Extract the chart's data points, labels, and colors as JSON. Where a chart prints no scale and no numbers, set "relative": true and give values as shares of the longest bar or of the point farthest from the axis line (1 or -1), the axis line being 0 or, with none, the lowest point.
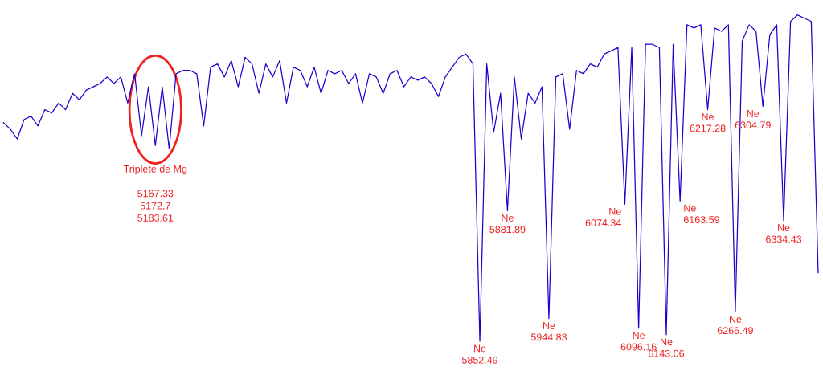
{
  "chart_data": {
    "type": "line",
    "relative": true,
    "categories": [
      null,
      null,
      null,
      null,
      null,
      null,
      null,
      null,
      null,
      null,
      null,
      null,
      null,
      null,
      null,
      null,
      null,
      null,
      null,
      null,
      null,
      null,
      null,
      null,
      null,
      null,
      null,
      null,
      null,
      null,
      null,
      null,
      null,
      null,
      null,
      null,
      null,
      null,
      null,
      null,
      null,
      null,
      null,
      null,
      null,
      null,
      null,
      null,
      null,
      null,
      null,
      null,
      null,
      null,
      null,
      null,
      null,
      null,
      null,
      null,
      null,
      null,
      null,
      null,
      null,
      null,
      null,
      null,
      null,
      null,
      null,
      null,
      null,
      null,
      null,
      null,
      null,
      null,
      null,
      null,
      null,
      null,
      null,
      null,
      null,
      null,
      null,
      null,
      null,
      null,
      null,
      null,
      null,
      null,
      null,
      null,
      null,
      null,
      null,
      null,
      null,
      null,
      null,
      null,
      null,
      null,
      null,
      null,
      null,
      null,
      null,
      null,
      null,
      null,
      null,
      null,
      null,
      null,
      null
    ],
    "series": [
      {
        "color": "#2200cc",
        "values": [
          0.67,
          0.65,
          0.62,
          0.68,
          0.69,
          0.66,
          0.71,
          0.7,
          0.73,
          0.71,
          0.76,
          0.74,
          0.77,
          0.78,
          0.79,
          0.81,
          0.79,
          0.81,
          0.73,
          0.82,
          0.63,
          0.78,
          0.6,
          0.78,
          0.59,
          0.82,
          0.83,
          0.83,
          0.82,
          0.66,
          0.84,
          0.85,
          0.81,
          0.86,
          0.78,
          0.87,
          0.85,
          0.76,
          0.85,
          0.81,
          0.86,
          0.73,
          0.84,
          0.83,
          0.78,
          0.84,
          0.76,
          0.83,
          0.82,
          0.83,
          0.79,
          0.82,
          0.73,
          0.82,
          0.81,
          0.76,
          0.82,
          0.83,
          0.78,
          0.81,
          0.8,
          0.81,
          0.79,
          0.75,
          0.81,
          0.84,
          0.87,
          0.88,
          0.85,
          0,
          0.85,
          0.64,
          0.76,
          0.4,
          0.81,
          0.62,
          0.76,
          0.73,
          0.78,
          0.07,
          0.81,
          0.82,
          0.65,
          0.83,
          0.82,
          0.85,
          0.84,
          0.88,
          0.89,
          0.9,
          0.42,
          0.9,
          0.04,
          0.91,
          0.91,
          0.9,
          0.02,
          0.91,
          0.43,
          0.97,
          0.96,
          0.97,
          0.71,
          0.96,
          0.95,
          0.97,
          0.09,
          0.92,
          0.97,
          0.95,
          0.72,
          0.94,
          0.97,
          0.37,
          0.98,
          1,
          0.99,
          0.98,
          0.21
        ]
      }
    ],
    "annotations": [
      "Triplete de Mg\n\n5167.33\n5172.7\n5183.61",
      "Ne\n5852.49",
      "Ne\n5881.89",
      "Ne\n5944.83",
      "Ne\n6074.34",
      "Ne\n6096.16",
      "Ne\n6143.06",
      "Ne\n6163.59",
      "Ne\n6217.28",
      "Ne\n6266.49",
      "Ne\n6304.79",
      "Ne\n6334.43"
    ]
  }
}
